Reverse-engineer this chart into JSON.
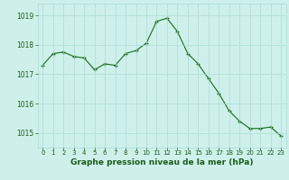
{
  "x": [
    0,
    1,
    2,
    3,
    4,
    5,
    6,
    7,
    8,
    9,
    10,
    11,
    12,
    13,
    14,
    15,
    16,
    17,
    18,
    19,
    20,
    21,
    22,
    23
  ],
  "y": [
    1017.3,
    1017.7,
    1017.75,
    1017.6,
    1017.55,
    1017.15,
    1017.35,
    1017.3,
    1017.7,
    1017.8,
    1018.05,
    1018.8,
    1018.9,
    1018.45,
    1017.7,
    1017.35,
    1016.85,
    1016.35,
    1015.75,
    1015.4,
    1015.15,
    1015.15,
    1015.2,
    1014.9
  ],
  "line_color": "#1a6b1a",
  "marker_color": "#1a6b1a",
  "bg_color": "#cef0ea",
  "grid_color": "#aaddd6",
  "xlabel": "Graphe pression niveau de la mer (hPa)",
  "xlabel_color": "#1a5c1a",
  "yticks": [
    1015,
    1016,
    1017,
    1018,
    1019
  ],
  "xticks": [
    0,
    1,
    2,
    3,
    4,
    5,
    6,
    7,
    8,
    9,
    10,
    11,
    12,
    13,
    14,
    15,
    16,
    17,
    18,
    19,
    20,
    21,
    22,
    23
  ],
  "ylim": [
    1014.5,
    1019.4
  ],
  "xlim": [
    -0.5,
    23.5
  ],
  "tick_color": "#1a5c1a"
}
